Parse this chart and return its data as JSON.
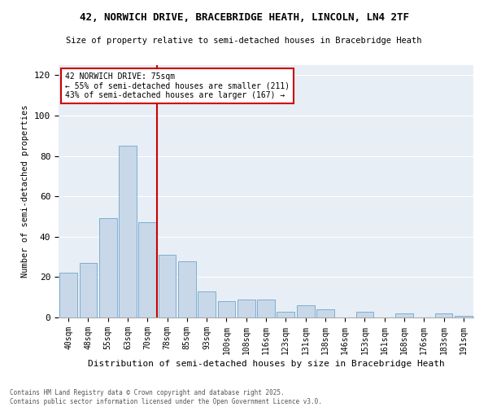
{
  "title1": "42, NORWICH DRIVE, BRACEBRIDGE HEATH, LINCOLN, LN4 2TF",
  "title2": "Size of property relative to semi-detached houses in Bracebridge Heath",
  "xlabel": "Distribution of semi-detached houses by size in Bracebridge Heath",
  "ylabel": "Number of semi-detached properties",
  "categories": [
    "40sqm",
    "48sqm",
    "55sqm",
    "63sqm",
    "70sqm",
    "78sqm",
    "85sqm",
    "93sqm",
    "100sqm",
    "108sqm",
    "116sqm",
    "123sqm",
    "131sqm",
    "138sqm",
    "146sqm",
    "153sqm",
    "161sqm",
    "168sqm",
    "176sqm",
    "183sqm",
    "191sqm"
  ],
  "values": [
    22,
    27,
    49,
    85,
    47,
    31,
    28,
    13,
    8,
    9,
    9,
    3,
    6,
    4,
    0,
    3,
    0,
    2,
    0,
    2,
    1
  ],
  "bar_color": "#c8d8e8",
  "bar_edge_color": "#7bafd4",
  "annotation_line0": "42 NORWICH DRIVE: 75sqm",
  "annotation_line1": "← 55% of semi-detached houses are smaller (211)",
  "annotation_line2": "43% of semi-detached houses are larger (167) →",
  "vline_color": "#cc0000",
  "vline_position": 4.5,
  "annotation_box_edgecolor": "#cc0000",
  "ylim": [
    0,
    125
  ],
  "yticks": [
    0,
    20,
    40,
    60,
    80,
    100,
    120
  ],
  "background_color": "#e8eef5",
  "footer1": "Contains HM Land Registry data © Crown copyright and database right 2025.",
  "footer2": "Contains public sector information licensed under the Open Government Licence v3.0."
}
